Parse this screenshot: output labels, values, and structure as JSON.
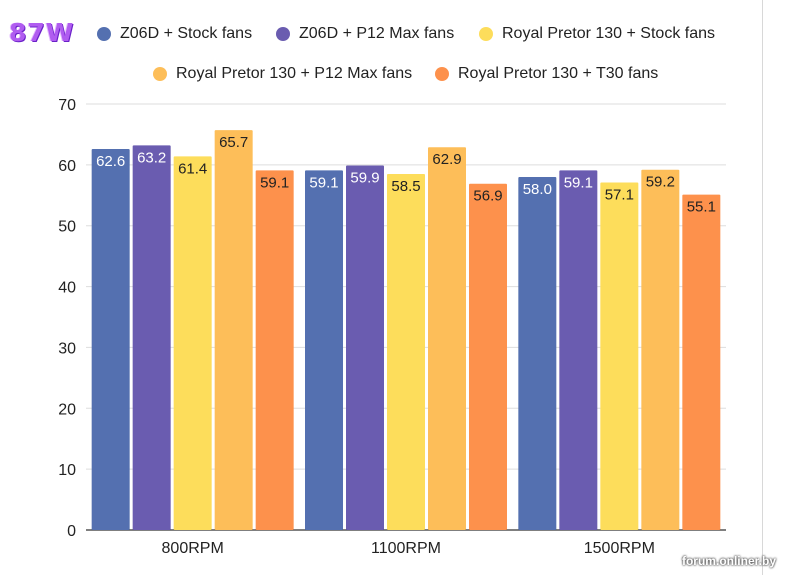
{
  "badge": {
    "text": "87W"
  },
  "watermark": {
    "text": "forum.onliner.by"
  },
  "chart_data": {
    "type": "bar",
    "title": "",
    "xlabel": "",
    "ylabel": "",
    "ylim": [
      0,
      70
    ],
    "yticks": [
      0,
      10,
      20,
      30,
      40,
      50,
      60,
      70
    ],
    "grid": true,
    "legend_position": "top",
    "categories": [
      "800RPM",
      "1100RPM",
      "1500RPM"
    ],
    "series": [
      {
        "name": "Z06D + Stock fans",
        "color": "#5470b0",
        "values": [
          62.6,
          59.1,
          58.0
        ],
        "labels": [
          "62.6",
          "59.1",
          "58.0"
        ]
      },
      {
        "name": "Z06D + P12 Max fans",
        "color": "#6a5cb0",
        "values": [
          63.2,
          59.9,
          59.1
        ],
        "labels": [
          "63.2",
          "59.9",
          "59.1"
        ]
      },
      {
        "name": "Royal Pretor 130 + Stock fans",
        "color": "#fddd5b",
        "values": [
          61.4,
          58.5,
          57.1
        ],
        "labels": [
          "61.4",
          "58.5",
          "57.1"
        ]
      },
      {
        "name": "Royal Pretor 130 + P12 Max fans",
        "color": "#fdbe59",
        "values": [
          65.7,
          62.9,
          59.2
        ],
        "labels": [
          "65.7",
          "62.9",
          "59.2"
        ]
      },
      {
        "name": "Royal Pretor 130 + T30 fans",
        "color": "#fd914c",
        "values": [
          59.1,
          56.9,
          55.1
        ],
        "labels": [
          "59.1",
          "56.9",
          "55.1"
        ]
      }
    ]
  }
}
